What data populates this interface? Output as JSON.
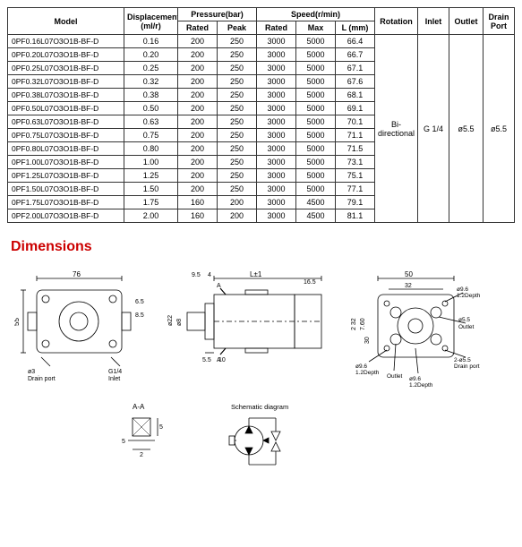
{
  "headers": {
    "model": "Model",
    "displacement": "Displacement (ml/r)",
    "pressure": "Pressure(bar)",
    "speed": "Speed(r/min)",
    "rotation": "Rotation",
    "inlet": "Inlet",
    "outlet": "Outlet",
    "drain": "Drain Port",
    "rated": "Rated",
    "peak": "Peak",
    "max": "Max",
    "l_mm": "L (mm)"
  },
  "rows": [
    {
      "model": "0PF0.16L07O3O1B-BF-D",
      "disp": "0.16",
      "pr": "200",
      "pp": "250",
      "sr": "3000",
      "sm": "5000",
      "l": "66.4"
    },
    {
      "model": "0PF0.20L07O3O1B-BF-D",
      "disp": "0.20",
      "pr": "200",
      "pp": "250",
      "sr": "3000",
      "sm": "5000",
      "l": "66.7"
    },
    {
      "model": "0PF0.25L07O3O1B-BF-D",
      "disp": "0.25",
      "pr": "200",
      "pp": "250",
      "sr": "3000",
      "sm": "5000",
      "l": "67.1"
    },
    {
      "model": "0PF0.32L07O3O1B-BF-D",
      "disp": "0.32",
      "pr": "200",
      "pp": "250",
      "sr": "3000",
      "sm": "5000",
      "l": "67.6"
    },
    {
      "model": "0PF0.38L07O3O1B-BF-D",
      "disp": "0.38",
      "pr": "200",
      "pp": "250",
      "sr": "3000",
      "sm": "5000",
      "l": "68.1"
    },
    {
      "model": "0PF0.50L07O3O1B-BF-D",
      "disp": "0.50",
      "pr": "200",
      "pp": "250",
      "sr": "3000",
      "sm": "5000",
      "l": "69.1"
    },
    {
      "model": "0PF0.63L07O3O1B-BF-D",
      "disp": "0.63",
      "pr": "200",
      "pp": "250",
      "sr": "3000",
      "sm": "5000",
      "l": "70.1"
    },
    {
      "model": "0PF0.75L07O3O1B-BF-D",
      "disp": "0.75",
      "pr": "200",
      "pp": "250",
      "sr": "3000",
      "sm": "5000",
      "l": "71.1"
    },
    {
      "model": "0PF0.80L07O3O1B-BF-D",
      "disp": "0.80",
      "pr": "200",
      "pp": "250",
      "sr": "3000",
      "sm": "5000",
      "l": "71.5"
    },
    {
      "model": "0PF1.00L07O3O1B-BF-D",
      "disp": "1.00",
      "pr": "200",
      "pp": "250",
      "sr": "3000",
      "sm": "5000",
      "l": "73.1"
    },
    {
      "model": "0PF1.25L07O3O1B-BF-D",
      "disp": "1.25",
      "pr": "200",
      "pp": "250",
      "sr": "3000",
      "sm": "5000",
      "l": "75.1"
    },
    {
      "model": "0PF1.50L07O3O1B-BF-D",
      "disp": "1.50",
      "pr": "200",
      "pp": "250",
      "sr": "3000",
      "sm": "5000",
      "l": "77.1"
    },
    {
      "model": "0PF1.75L07O3O1B-BF-D",
      "disp": "1.75",
      "pr": "160",
      "pp": "200",
      "sr": "3000",
      "sm": "4500",
      "l": "79.1"
    },
    {
      "model": "0PF2.00L07O3O1B-BF-D",
      "disp": "2.00",
      "pr": "160",
      "pp": "200",
      "sr": "3000",
      "sm": "4500",
      "l": "81.1"
    }
  ],
  "shared": {
    "rotation": "Bi-directional",
    "inlet": "G 1/4",
    "outlet": "ø5.5",
    "drain": "ø5.5"
  },
  "section_title": "Dimensions",
  "dim_labels": {
    "v1_w": "76",
    "v1_h": "55",
    "v1_drain": "ø3",
    "v1_draintxt": "Drain port",
    "v1_inlet": "G1/4",
    "v1_inlettxt": "Inlet",
    "v1_r1": "6.5",
    "v1_r2": "8.5",
    "v2_95": "9.5",
    "v2_4": "4",
    "v2_L": "L±1",
    "v2_165": "16.5",
    "v2_d22": "ø22",
    "v2_d8": "ø8",
    "v2_55": "5.5",
    "v2_10": "10",
    "v3_50": "50",
    "v3_32": "32",
    "v3_30": "30",
    "v3_460": "7.60",
    "v3_232": "2 32",
    "v3_96a": "ø9.6",
    "v3_96b": "ø9.6",
    "v3_12d": "1.2Depth",
    "v3_outlet": "Outlet",
    "v3_drain": "Drain port",
    "v3_55": "ø5.5",
    "aa": "A-A",
    "sq": "5",
    "sq2": "2",
    "schem": "Schematic diagram"
  },
  "colors": {
    "line": "#000000",
    "bg": "#ffffff"
  }
}
